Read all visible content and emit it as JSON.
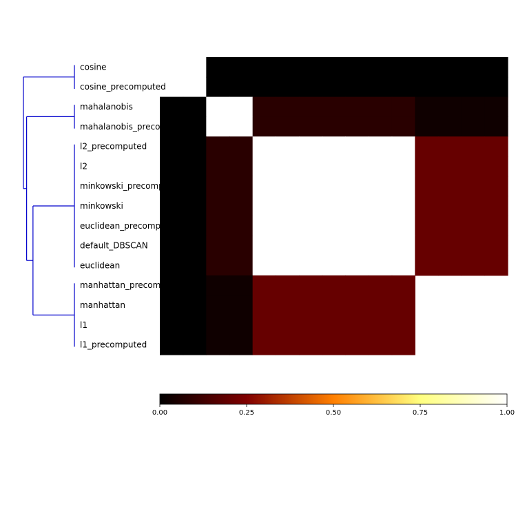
{
  "chart_data": {
    "type": "heatmap",
    "title": "",
    "xlabel": "",
    "ylabel": "",
    "row_labels": [
      "cosine",
      "cosine_precomputed",
      "mahalanobis",
      "mahalanobis_precomputed",
      "l2_precomputed",
      "l2",
      "minkowski_precomputed",
      "minkowski",
      "euclidean_precomputed",
      "default_DBSCAN",
      "euclidean",
      "manhattan_precomputed",
      "manhattan",
      "l1",
      "l1_precomputed"
    ],
    "matrix": [
      [
        null,
        null,
        0.0,
        0.0,
        0.0,
        0.0,
        0.0,
        0.0,
        0.0,
        0.0,
        0.0,
        0.0,
        0.0,
        0.0,
        0.0
      ],
      [
        null,
        null,
        0.0,
        0.0,
        0.0,
        0.0,
        0.0,
        0.0,
        0.0,
        0.0,
        0.0,
        0.0,
        0.0,
        0.0,
        0.0
      ],
      [
        0.0,
        0.0,
        1.0,
        1.0,
        0.08,
        0.08,
        0.08,
        0.08,
        0.08,
        0.08,
        0.08,
        0.03,
        0.03,
        0.03,
        0.03
      ],
      [
        0.0,
        0.0,
        1.0,
        1.0,
        0.08,
        0.08,
        0.08,
        0.08,
        0.08,
        0.08,
        0.08,
        0.03,
        0.03,
        0.03,
        0.03
      ],
      [
        0.0,
        0.0,
        0.08,
        0.08,
        1.0,
        1.0,
        1.0,
        1.0,
        1.0,
        1.0,
        1.0,
        0.2,
        0.2,
        0.2,
        0.2
      ],
      [
        0.0,
        0.0,
        0.08,
        0.08,
        1.0,
        1.0,
        1.0,
        1.0,
        1.0,
        1.0,
        1.0,
        0.2,
        0.2,
        0.2,
        0.2
      ],
      [
        0.0,
        0.0,
        0.08,
        0.08,
        1.0,
        1.0,
        1.0,
        1.0,
        1.0,
        1.0,
        1.0,
        0.2,
        0.2,
        0.2,
        0.2
      ],
      [
        0.0,
        0.0,
        0.08,
        0.08,
        1.0,
        1.0,
        1.0,
        1.0,
        1.0,
        1.0,
        1.0,
        0.2,
        0.2,
        0.2,
        0.2
      ],
      [
        0.0,
        0.0,
        0.08,
        0.08,
        1.0,
        1.0,
        1.0,
        1.0,
        1.0,
        1.0,
        1.0,
        0.2,
        0.2,
        0.2,
        0.2
      ],
      [
        0.0,
        0.0,
        0.08,
        0.08,
        1.0,
        1.0,
        1.0,
        1.0,
        1.0,
        1.0,
        1.0,
        0.2,
        0.2,
        0.2,
        0.2
      ],
      [
        0.0,
        0.0,
        0.08,
        0.08,
        1.0,
        1.0,
        1.0,
        1.0,
        1.0,
        1.0,
        1.0,
        0.2,
        0.2,
        0.2,
        0.2
      ],
      [
        0.0,
        0.0,
        0.03,
        0.03,
        0.2,
        0.2,
        0.2,
        0.2,
        0.2,
        0.2,
        0.2,
        null,
        null,
        null,
        null
      ],
      [
        0.0,
        0.0,
        0.03,
        0.03,
        0.2,
        0.2,
        0.2,
        0.2,
        0.2,
        0.2,
        0.2,
        null,
        null,
        null,
        null
      ],
      [
        0.0,
        0.0,
        0.03,
        0.03,
        0.2,
        0.2,
        0.2,
        0.2,
        0.2,
        0.2,
        0.2,
        null,
        null,
        null,
        null
      ],
      [
        0.0,
        0.0,
        0.03,
        0.03,
        0.2,
        0.2,
        0.2,
        0.2,
        0.2,
        0.2,
        0.2,
        null,
        null,
        null,
        null
      ]
    ],
    "colorbar": {
      "colormap": "afmhot",
      "range": [
        0.0,
        1.0
      ],
      "ticks": [
        0.0,
        0.25,
        0.5,
        0.75,
        1.0
      ],
      "tick_labels": [
        "0.00",
        "0.25",
        "0.50",
        "0.75",
        "1.00"
      ],
      "orientation": "horizontal"
    },
    "dendrogram": {
      "orientation": "left",
      "color": "#0000cc",
      "clusters": [
        [
          "cosine",
          "cosine_precomputed"
        ],
        [
          "mahalanobis",
          "mahalanobis_precomputed"
        ],
        [
          "l2_precomputed",
          "l2",
          "minkowski_precomputed",
          "minkowski",
          "euclidean_precomputed",
          "default_DBSCAN",
          "euclidean"
        ],
        [
          "manhattan_precomputed",
          "manhattan",
          "l1",
          "l1_precomputed"
        ]
      ],
      "links": [
        {
          "left": "cluster:2",
          "right": "cluster:3",
          "height": 0.65
        },
        {
          "left": "cluster:1",
          "right": "link:0",
          "height": 0.75
        },
        {
          "left": "cluster:0",
          "right": "link:1",
          "height": 0.8
        }
      ]
    },
    "grid": false,
    "legend": "none"
  }
}
